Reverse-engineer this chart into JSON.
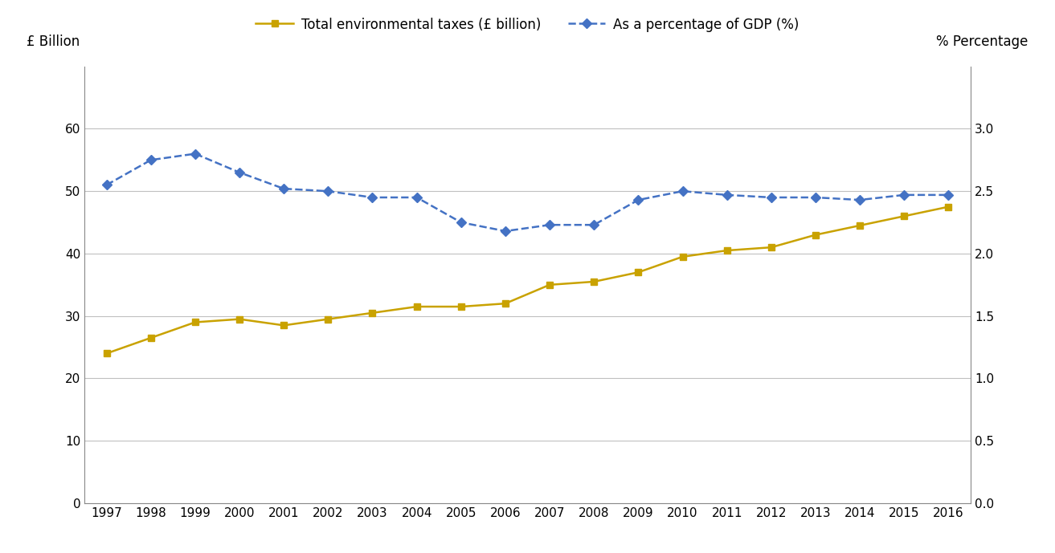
{
  "years": [
    1997,
    1998,
    1999,
    2000,
    2001,
    2002,
    2003,
    2004,
    2005,
    2006,
    2007,
    2008,
    2009,
    2010,
    2011,
    2012,
    2013,
    2014,
    2015,
    2016
  ],
  "total_taxes": [
    24.0,
    26.5,
    29.0,
    29.5,
    28.5,
    29.5,
    30.5,
    31.5,
    31.5,
    32.0,
    35.0,
    35.5,
    37.0,
    39.5,
    40.5,
    41.0,
    43.0,
    44.5,
    46.0,
    47.5
  ],
  "pct_gdp": [
    2.55,
    2.75,
    2.8,
    2.65,
    2.52,
    2.5,
    2.45,
    2.45,
    2.25,
    2.18,
    2.23,
    2.23,
    2.43,
    2.5,
    2.47,
    2.45,
    2.45,
    2.43,
    2.47,
    2.47
  ],
  "tax_color": "#C9A200",
  "gdp_color": "#4472C4",
  "left_axis_label": "£ Billion",
  "right_axis_label": "% Percentage",
  "legend_tax": "Total environmental taxes (£ billion)",
  "legend_gdp": "As a percentage of GDP (%)",
  "ylim_left": [
    0,
    70
  ],
  "ylim_right": [
    0.0,
    3.5
  ],
  "yticks_left": [
    0,
    10,
    20,
    30,
    40,
    50,
    60
  ],
  "yticks_right": [
    0.0,
    0.5,
    1.0,
    1.5,
    2.0,
    2.5,
    3.0
  ],
  "background_color": "#ffffff",
  "grid_color": "#c0c0c0",
  "spine_color": "#888888"
}
